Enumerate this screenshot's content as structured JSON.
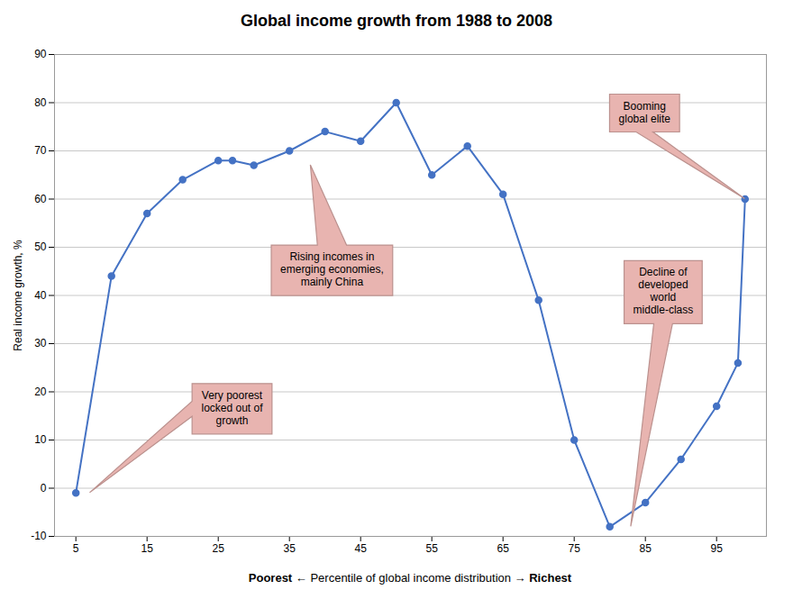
{
  "chart_data": {
    "type": "line",
    "title": "Global income growth from 1988 to 2008",
    "xlabel": "Poorest ← Percentile of global income distribution → Richest",
    "ylabel": "Real income growth, %",
    "x": [
      5,
      10,
      15,
      20,
      25,
      27,
      30,
      35,
      40,
      45,
      50,
      55,
      60,
      65,
      70,
      75,
      80,
      85,
      90,
      95,
      98,
      99
    ],
    "values": [
      -1,
      44,
      57,
      64,
      68,
      68,
      67,
      70,
      74,
      72,
      80,
      65,
      71,
      61,
      39,
      10,
      -8,
      -3,
      6,
      17,
      26,
      60
    ],
    "color": "#4472C4",
    "marker": "circle",
    "xlim": [
      2,
      102
    ],
    "xticks": [
      5,
      15,
      25,
      35,
      45,
      55,
      65,
      75,
      85,
      95
    ],
    "ylim": [
      -10,
      90
    ],
    "yticks": [
      -10,
      0,
      10,
      20,
      30,
      40,
      50,
      60,
      70,
      80,
      90
    ],
    "grid": "y",
    "annotations": [
      {
        "text": "Very poorest\nlocked out of\ngrowth",
        "x": 7,
        "y": -1,
        "color": "#E8B4B0"
      },
      {
        "text": "Rising incomes in\nemerging economies,\nmainly China",
        "x": 38,
        "y": 67,
        "color": "#E8B4B0"
      },
      {
        "text": "Booming\nglobal elite",
        "x": 99,
        "y": 60,
        "color": "#E8B4B0"
      },
      {
        "text": "Decline of\ndeveloped\nworld\nmiddle-class",
        "x": 83,
        "y": -8,
        "color": "#E8B4B0"
      }
    ]
  }
}
